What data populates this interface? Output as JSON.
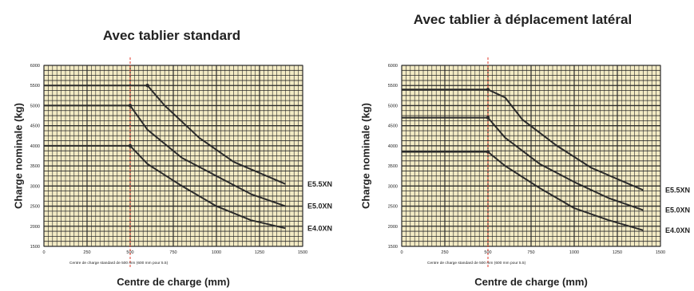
{
  "colors": {
    "plot_bg": "#f3ebc4",
    "grid": "#2a2a2a",
    "curve": "#2a2a2a",
    "reference_line": "#e23b2b",
    "text": "#222222"
  },
  "chart_data": [
    {
      "type": "line",
      "title": "Avec tablier standard",
      "xlabel": "Centre de charge (mm)",
      "ylabel": "Charge nominale (kg)",
      "xlim": [
        0,
        1500
      ],
      "ylim": [
        1500,
        6000
      ],
      "x_ticks": [
        0,
        250,
        500,
        750,
        1000,
        1250,
        1500
      ],
      "y_ticks": [
        1500,
        2000,
        2500,
        3000,
        3500,
        4000,
        4500,
        5000,
        5500,
        6000
      ],
      "grid": true,
      "reference_line": {
        "x": 500,
        "label": "Centre de charge standard de 500 mm (600 mm pour 5.5)"
      },
      "series": [
        {
          "name": "E5.5XN",
          "x": [
            0,
            600,
            700,
            900,
            1100,
            1400
          ],
          "y": [
            5500,
            5500,
            5000,
            4200,
            3600,
            3050
          ]
        },
        {
          "name": "E5.0XN",
          "x": [
            0,
            500,
            600,
            800,
            1000,
            1200,
            1400
          ],
          "y": [
            5000,
            5000,
            4400,
            3700,
            3250,
            2800,
            2500
          ]
        },
        {
          "name": "E4.0XN",
          "x": [
            0,
            500,
            600,
            800,
            1000,
            1200,
            1400
          ],
          "y": [
            4000,
            4000,
            3550,
            3000,
            2500,
            2150,
            1950
          ]
        }
      ]
    },
    {
      "type": "line",
      "title": "Avec tablier à déplacement latéral",
      "xlabel": "Centre de charge (mm)",
      "ylabel": "Charge nominale (kg)",
      "xlim": [
        0,
        1500
      ],
      "ylim": [
        1500,
        6000
      ],
      "x_ticks": [
        0,
        250,
        500,
        750,
        1000,
        1250,
        1500
      ],
      "y_ticks": [
        1500,
        2000,
        2500,
        3000,
        3500,
        4000,
        4500,
        5000,
        5500,
        6000
      ],
      "grid": true,
      "reference_line": {
        "x": 500,
        "label": "Centre de charge standard de 500 mm (600 mm pour 5.5)"
      },
      "series": [
        {
          "name": "E5.5XN",
          "x": [
            0,
            500,
            600,
            700,
            900,
            1100,
            1400
          ],
          "y": [
            5400,
            5400,
            5200,
            4650,
            4000,
            3450,
            2900
          ]
        },
        {
          "name": "E5.0XN",
          "x": [
            0,
            500,
            600,
            800,
            1000,
            1200,
            1400
          ],
          "y": [
            4700,
            4700,
            4200,
            3550,
            3100,
            2700,
            2400
          ]
        },
        {
          "name": "E4.0XN",
          "x": [
            0,
            500,
            600,
            800,
            1000,
            1200,
            1400
          ],
          "y": [
            3850,
            3850,
            3500,
            2950,
            2450,
            2150,
            1900
          ]
        }
      ]
    }
  ]
}
